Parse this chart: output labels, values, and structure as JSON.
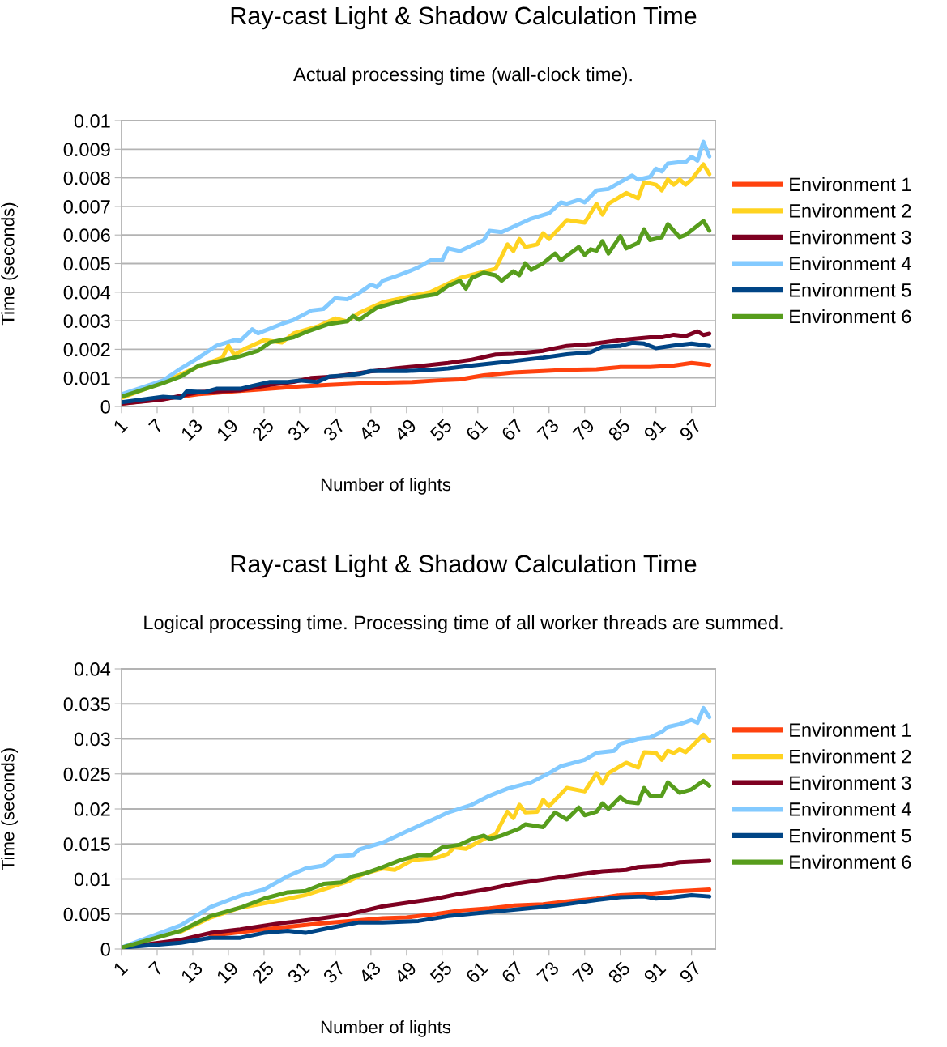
{
  "chart_data": [
    {
      "type": "line",
      "title": "Ray-cast Light & Shadow Calculation Time",
      "subtitle": "Actual processing time (wall-clock time).",
      "xlabel": "Number of lights",
      "ylabel": "Time (seconds)",
      "xlim": [
        1,
        101
      ],
      "xticks": [
        1,
        7,
        13,
        19,
        25,
        31,
        37,
        43,
        49,
        55,
        61,
        67,
        73,
        79,
        85,
        91,
        97
      ],
      "ylim": [
        0,
        0.01
      ],
      "yticks": [
        0,
        0.001,
        0.002,
        0.003,
        0.004,
        0.005,
        0.006,
        0.007,
        0.008,
        0.009,
        0.01
      ],
      "grid": "y",
      "legend": "right",
      "marker": "none",
      "line_style": "solid",
      "series": [
        {
          "name": "Environment 1",
          "color": "#ff420e",
          "x": [
            1,
            8,
            14,
            20,
            26,
            31,
            36,
            41,
            44,
            50,
            54,
            58,
            62,
            67,
            72,
            76,
            81,
            85,
            90,
            94,
            97,
            100
          ],
          "values": [
            0.0001,
            0.00026,
            0.00043,
            0.00053,
            0.00062,
            0.0007,
            0.00076,
            0.00081,
            0.00083,
            0.00086,
            0.00091,
            0.00095,
            0.00109,
            0.00119,
            0.00124,
            0.00128,
            0.0013,
            0.00138,
            0.00138,
            0.00143,
            0.00152,
            0.00145
          ]
        },
        {
          "name": "Environment 2",
          "color": "#ffd320",
          "x": [
            1,
            8,
            14,
            18,
            19,
            20,
            22,
            25,
            28,
            30,
            34,
            37,
            39,
            41,
            45,
            53,
            58,
            64,
            66,
            67,
            68,
            69,
            71,
            72,
            73,
            76,
            79,
            81,
            82,
            83,
            86,
            88,
            89,
            91,
            92,
            93,
            94,
            95,
            96,
            97,
            99,
            100
          ],
          "values": [
            0.0003,
            0.00085,
            0.0014,
            0.00171,
            0.00213,
            0.00181,
            0.00204,
            0.00232,
            0.00224,
            0.00256,
            0.0028,
            0.00308,
            0.00298,
            0.00327,
            0.00365,
            0.004,
            0.0045,
            0.00482,
            0.00567,
            0.00544,
            0.00586,
            0.00558,
            0.00567,
            0.00606,
            0.00586,
            0.00652,
            0.00643,
            0.00709,
            0.00671,
            0.00709,
            0.00747,
            0.00728,
            0.00785,
            0.00776,
            0.00756,
            0.00794,
            0.00776,
            0.00794,
            0.00776,
            0.00794,
            0.00847,
            0.00813
          ]
        },
        {
          "name": "Environment 3",
          "color": "#7e0021",
          "x": [
            1,
            8,
            14,
            21,
            26,
            30,
            33,
            37,
            42,
            47,
            52,
            56,
            60,
            64,
            67,
            72,
            76,
            80,
            82,
            85,
            90,
            92,
            94,
            96,
            98,
            99,
            100
          ],
          "values": [
            0.0001,
            0.00025,
            0.0005,
            0.00057,
            0.00076,
            0.00086,
            0.001,
            0.00105,
            0.0012,
            0.00133,
            0.00143,
            0.00152,
            0.00164,
            0.00182,
            0.00184,
            0.00195,
            0.00212,
            0.00218,
            0.00224,
            0.00232,
            0.00242,
            0.00242,
            0.00251,
            0.00246,
            0.00263,
            0.0025,
            0.00255
          ]
        },
        {
          "name": "Environment 4",
          "color": "#83caff",
          "x": [
            1,
            8,
            11,
            14,
            17,
            20,
            21,
            23,
            24,
            28,
            30,
            33,
            35,
            37,
            39,
            41,
            43,
            44,
            45,
            47,
            50,
            51,
            53,
            55,
            56,
            58,
            60,
            62,
            63,
            65,
            67,
            70,
            73,
            75,
            76,
            78,
            79,
            81,
            83,
            85,
            87,
            88,
            90,
            91,
            92,
            93,
            95,
            96,
            97,
            98,
            99,
            100
          ],
          "values": [
            0.00043,
            0.00091,
            0.00133,
            0.00171,
            0.00213,
            0.00232,
            0.0023,
            0.0027,
            0.00256,
            0.00289,
            0.00303,
            0.00336,
            0.00341,
            0.00379,
            0.00375,
            0.00397,
            0.00426,
            0.00418,
            0.0044,
            0.00454,
            0.00478,
            0.00487,
            0.00511,
            0.00511,
            0.00553,
            0.00544,
            0.00563,
            0.00582,
            0.00615,
            0.0061,
            0.00629,
            0.00657,
            0.00676,
            0.00714,
            0.00709,
            0.00723,
            0.00714,
            0.00756,
            0.00761,
            0.00785,
            0.00808,
            0.00794,
            0.00803,
            0.00832,
            0.00822,
            0.0085,
            0.00855,
            0.00855,
            0.00874,
            0.0086,
            0.00926,
            0.00875
          ]
        },
        {
          "name": "Environment 5",
          "color": "#004586",
          "x": [
            1,
            8,
            11,
            12,
            15,
            17,
            21,
            23,
            26,
            29,
            31,
            34,
            36,
            39,
            41,
            43,
            49,
            53,
            56,
            60,
            64,
            67,
            72,
            76,
            80,
            82,
            85,
            87,
            89,
            91,
            94,
            97,
            100
          ],
          "values": [
            0.00015,
            0.00034,
            0.0003,
            0.00053,
            0.0005,
            0.00062,
            0.00062,
            0.00072,
            0.00086,
            0.00086,
            0.00091,
            0.00086,
            0.00105,
            0.00109,
            0.00114,
            0.00124,
            0.00124,
            0.00128,
            0.00133,
            0.00143,
            0.00152,
            0.00159,
            0.00171,
            0.00183,
            0.0019,
            0.00209,
            0.00212,
            0.00223,
            0.0022,
            0.00204,
            0.00213,
            0.0022,
            0.00212
          ]
        },
        {
          "name": "Environment 6",
          "color": "#579d1c",
          "x": [
            1,
            8,
            11,
            14,
            17,
            21,
            24,
            26,
            30,
            32,
            36,
            39,
            40,
            41,
            44,
            50,
            54,
            56,
            58,
            59,
            60,
            62,
            64,
            65,
            67,
            68,
            69,
            70,
            72,
            74,
            75,
            78,
            79,
            80,
            81,
            82,
            83,
            85,
            86,
            88,
            89,
            90,
            92,
            93,
            95,
            96,
            99,
            100
          ],
          "values": [
            0.00034,
            0.00082,
            0.00105,
            0.00143,
            0.00157,
            0.00176,
            0.00195,
            0.00224,
            0.00242,
            0.0026,
            0.00289,
            0.00298,
            0.00317,
            0.00303,
            0.00346,
            0.0038,
            0.00393,
            0.00422,
            0.0044,
            0.00412,
            0.0045,
            0.00468,
            0.00459,
            0.0044,
            0.00473,
            0.00459,
            0.00501,
            0.00478,
            0.00501,
            0.00535,
            0.00511,
            0.00558,
            0.0053,
            0.0055,
            0.00545,
            0.00578,
            0.00535,
            0.00596,
            0.00553,
            0.00572,
            0.0062,
            0.00582,
            0.00592,
            0.00638,
            0.00592,
            0.006,
            0.00649,
            0.00615
          ]
        }
      ]
    },
    {
      "type": "line",
      "title": "Ray-cast Light & Shadow Calculation Time",
      "subtitle": "Logical processing time. Processing time of all worker threads are summed.",
      "xlabel": "Number of lights",
      "ylabel": "Time (seconds)",
      "xlim": [
        1,
        101
      ],
      "xticks": [
        1,
        7,
        13,
        19,
        25,
        31,
        37,
        43,
        49,
        55,
        61,
        67,
        73,
        79,
        85,
        91,
        97
      ],
      "ylim": [
        0,
        0.04
      ],
      "yticks": [
        0,
        0.005,
        0.01,
        0.015,
        0.02,
        0.025,
        0.03,
        0.035,
        0.04
      ],
      "grid": "y",
      "legend": "right",
      "marker": "none",
      "line_style": "solid",
      "series": [
        {
          "name": "Environment 1",
          "color": "#ff420e",
          "x": [
            16,
            25,
            34,
            45,
            49,
            54,
            58,
            63,
            67,
            72,
            76,
            81,
            85,
            90,
            94,
            100
          ],
          "values": [
            0.0019,
            0.0028,
            0.0036,
            0.0044,
            0.0045,
            0.005,
            0.0055,
            0.0058,
            0.0062,
            0.0064,
            0.0068,
            0.0072,
            0.0077,
            0.0079,
            0.0082,
            0.0085
          ]
        },
        {
          "name": "Environment 2",
          "color": "#ffd320",
          "x": [
            11,
            16,
            21,
            28,
            32,
            35,
            39,
            42,
            45,
            47,
            50,
            54,
            56,
            57,
            59,
            62,
            64,
            66,
            67,
            68,
            69,
            71,
            72,
            73,
            76,
            79,
            81,
            82,
            83,
            86,
            88,
            89,
            91,
            92,
            93,
            94,
            95,
            96,
            97,
            99,
            100
          ],
          "values": [
            0.0025,
            0.0045,
            0.0059,
            0.007,
            0.0077,
            0.0085,
            0.0096,
            0.0108,
            0.0115,
            0.0113,
            0.0127,
            0.013,
            0.0136,
            0.0145,
            0.0143,
            0.0157,
            0.0164,
            0.0196,
            0.0187,
            0.0206,
            0.0195,
            0.0196,
            0.0213,
            0.0204,
            0.023,
            0.0225,
            0.0251,
            0.0236,
            0.0251,
            0.0266,
            0.0259,
            0.0281,
            0.028,
            0.027,
            0.0283,
            0.028,
            0.0285,
            0.0281,
            0.0289,
            0.0306,
            0.0297
          ]
        },
        {
          "name": "Environment 3",
          "color": "#7e0021",
          "x": [
            1,
            11,
            16,
            21,
            27,
            31,
            34,
            39,
            45,
            49,
            54,
            58,
            63,
            67,
            72,
            76,
            82,
            86,
            88,
            92,
            95,
            100
          ],
          "values": [
            0.0002,
            0.0013,
            0.0023,
            0.0028,
            0.0036,
            0.004,
            0.0043,
            0.0049,
            0.0061,
            0.0066,
            0.0072,
            0.0079,
            0.0086,
            0.0093,
            0.0099,
            0.0104,
            0.0111,
            0.0113,
            0.0117,
            0.0119,
            0.0124,
            0.0126
          ]
        },
        {
          "name": "Environment 4",
          "color": "#83caff",
          "x": [
            1,
            11,
            16,
            21,
            25,
            29,
            32,
            35,
            37,
            40,
            41,
            45,
            49,
            54,
            56,
            60,
            63,
            66,
            70,
            73,
            75,
            79,
            81,
            84,
            85,
            88,
            90,
            92,
            93,
            95,
            97,
            98,
            99,
            100
          ],
          "values": [
            0.0002,
            0.0034,
            0.006,
            0.0076,
            0.0085,
            0.0104,
            0.0115,
            0.0119,
            0.0132,
            0.0134,
            0.0142,
            0.0152,
            0.0168,
            0.0187,
            0.0195,
            0.0206,
            0.0219,
            0.0229,
            0.0238,
            0.0251,
            0.0261,
            0.027,
            0.028,
            0.0283,
            0.0293,
            0.03,
            0.0302,
            0.031,
            0.0317,
            0.0321,
            0.0327,
            0.0323,
            0.0344,
            0.0331
          ]
        },
        {
          "name": "Environment 5",
          "color": "#004586",
          "x": [
            1,
            11,
            16,
            21,
            25,
            29,
            31,
            32,
            36,
            41,
            45,
            51,
            56,
            63,
            67,
            72,
            76,
            81,
            85,
            89,
            91,
            94,
            97,
            100
          ],
          "values": [
            0.0002,
            0.0009,
            0.0016,
            0.0016,
            0.0023,
            0.0026,
            0.0024,
            0.0023,
            0.003,
            0.0038,
            0.0038,
            0.004,
            0.0047,
            0.0053,
            0.0056,
            0.006,
            0.0064,
            0.007,
            0.0074,
            0.0075,
            0.0072,
            0.0074,
            0.0077,
            0.0075
          ]
        },
        {
          "name": "Environment 6",
          "color": "#579d1c",
          "x": [
            1,
            11,
            16,
            21,
            25,
            29,
            32,
            35,
            38,
            40,
            42,
            45,
            48,
            51,
            53,
            55,
            58,
            60,
            62,
            63,
            65,
            68,
            69,
            72,
            74,
            76,
            78,
            79,
            81,
            82,
            83,
            85,
            86,
            88,
            89,
            90,
            92,
            93,
            95,
            97,
            99,
            100
          ],
          "values": [
            0.0002,
            0.0026,
            0.0047,
            0.0059,
            0.0072,
            0.0081,
            0.0083,
            0.0093,
            0.0095,
            0.0104,
            0.0108,
            0.0117,
            0.0127,
            0.0134,
            0.0134,
            0.0145,
            0.0149,
            0.0157,
            0.0162,
            0.0157,
            0.0162,
            0.0172,
            0.0178,
            0.0174,
            0.0195,
            0.0185,
            0.0202,
            0.0191,
            0.0196,
            0.0208,
            0.02,
            0.0217,
            0.021,
            0.0208,
            0.023,
            0.0219,
            0.0219,
            0.0238,
            0.0223,
            0.0228,
            0.024,
            0.0233
          ]
        }
      ]
    }
  ]
}
